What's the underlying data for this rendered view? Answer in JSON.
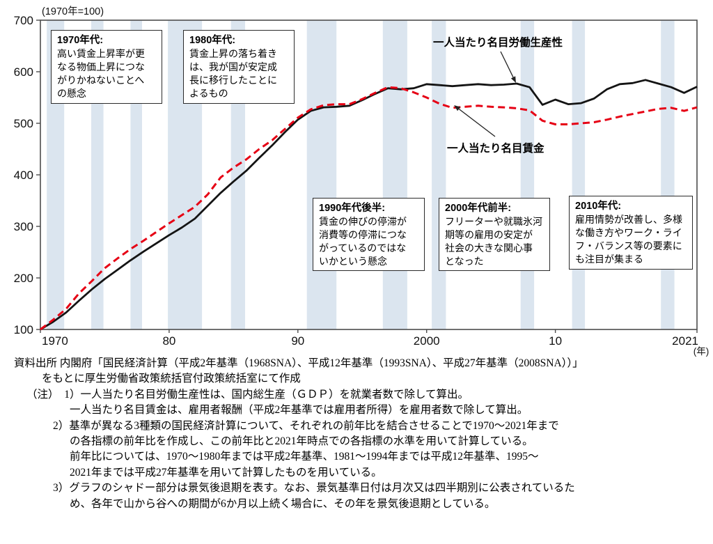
{
  "chart": {
    "y_axis_title": "(1970年=100)",
    "x_axis_unit_label": "(年)",
    "y_ticks": [
      700,
      600,
      500,
      400,
      300,
      200,
      100
    ],
    "x_ticks": [
      {
        "label": "1970",
        "year": 1970,
        "align": "start"
      },
      {
        "label": "80",
        "year": 1980,
        "align": "middle"
      },
      {
        "label": "90",
        "year": 1990,
        "align": "middle"
      },
      {
        "label": "2000",
        "year": 2000,
        "align": "middle"
      },
      {
        "label": "10",
        "year": 2010,
        "align": "middle"
      },
      {
        "label": "2021",
        "year": 2021,
        "align": "end"
      }
    ],
    "colors": {
      "productivity_line": "#141414",
      "wage_line": "#e60014",
      "recession_band": "#dbe5ef",
      "frame": "#4d4d4d",
      "text": "#111111"
    }
  },
  "chart_data": {
    "type": "line",
    "title": "",
    "xlabel": "(年)",
    "ylabel": "(1970年=100)",
    "xlim": [
      1970,
      2021
    ],
    "ylim": [
      100,
      700
    ],
    "grid": false,
    "x": [
      1970,
      1971,
      1972,
      1973,
      1974,
      1975,
      1976,
      1977,
      1978,
      1979,
      1980,
      1981,
      1982,
      1983,
      1984,
      1985,
      1986,
      1987,
      1988,
      1989,
      1990,
      1991,
      1992,
      1993,
      1994,
      1995,
      1996,
      1997,
      1998,
      1999,
      2000,
      2001,
      2002,
      2003,
      2004,
      2005,
      2006,
      2007,
      2008,
      2009,
      2010,
      2011,
      2012,
      2013,
      2014,
      2015,
      2016,
      2017,
      2018,
      2019,
      2020,
      2021
    ],
    "series": [
      {
        "id": "productivity",
        "name": "一人当たり名目労働生産性",
        "style": "solid",
        "color": "#141414",
        "values": [
          100,
          115,
          133,
          156,
          178,
          198,
          216,
          234,
          251,
          267,
          283,
          298,
          315,
          340,
          365,
          387,
          408,
          433,
          457,
          483,
          507,
          524,
          531,
          532,
          534,
          545,
          557,
          568,
          566,
          568,
          576,
          574,
          572,
          574,
          576,
          574,
          575,
          577,
          570,
          536,
          546,
          537,
          539,
          548,
          566,
          576,
          578,
          584,
          577,
          570,
          559,
          571
        ]
      },
      {
        "id": "wage",
        "name": "一人当たり名目賃金",
        "style": "dashed",
        "color": "#e60014",
        "values": [
          100,
          119,
          140,
          170,
          194,
          219,
          238,
          256,
          272,
          289,
          306,
          322,
          338,
          362,
          395,
          414,
          430,
          450,
          467,
          489,
          511,
          527,
          535,
          537,
          537,
          547,
          559,
          570,
          568,
          560,
          550,
          538,
          530,
          532,
          534,
          532,
          531,
          529,
          525,
          505,
          498,
          498,
          500,
          502,
          507,
          513,
          518,
          523,
          528,
          530,
          524,
          531
        ]
      }
    ],
    "recession_bands_years": [
      [
        1970.5,
        1971.85
      ],
      [
        1973.95,
        1974.9
      ],
      [
        1977.0,
        1977.9
      ],
      [
        1979.9,
        1982.55
      ],
      [
        1984.8,
        1985.9
      ],
      [
        1990.7,
        1993.0
      ],
      [
        1996.6,
        1998.5
      ],
      [
        2000.4,
        2001.5
      ],
      [
        2007.3,
        2008.35
      ],
      [
        2011.3,
        2012.3
      ],
      [
        2018.2,
        2019.25
      ]
    ],
    "legend_position": "annotated-arrows"
  },
  "legend": {
    "productivity": "一人当たり名目労働生産性",
    "wage": "一人当たり名目賃金"
  },
  "annotations": [
    {
      "title": "1970年代:",
      "lines": [
        "高い賃金上昇率が更",
        "なる物価上昇につな",
        "がりかねないことへ",
        "の懸念"
      ]
    },
    {
      "title": "1980年代:",
      "lines": [
        "賃金上昇の落ち着き",
        "は、我が国が安定成",
        "長に移行したことに",
        "よるもの"
      ]
    },
    {
      "title": "1990年代後半:",
      "lines": [
        "賃金の伸びの停滞が",
        "消費等の停滞につな",
        "がっているのではな",
        "いかという懸念"
      ]
    },
    {
      "title": "2000年代前半:",
      "lines": [
        "フリーターや就職氷河",
        "期等の雇用の安定が",
        "社会の大きな関心事",
        "となった"
      ]
    },
    {
      "title": "2010年代:",
      "lines": [
        "雇用情勢が改善し、多様",
        "な働き方やワーク・ライ",
        "フ・バランス等の要素に",
        "も注目が集まる"
      ]
    }
  ],
  "footer": {
    "lines": [
      "資料出所 内閣府「国民経済計算（平成2年基準（1968SNA）、平成12年基準（1993SNA）、平成27年基準（2008SNA））」",
      "をもとに厚生労働省政策統括官付政策統括室にて作成",
      "（注）　1）一人当たり名目労働生産性は、国内総生産（ＧＤＰ）を就業者数で除して算出。",
      "一人当たり名目賃金は、雇用者報酬（平成2年基準では雇用者所得）を雇用者数で除して算出。",
      "2）基準が異なる3種類の国民経済計算について、それぞれの前年比を結合させることで1970～2021年まで",
      "の各指標の前年比を作成し、この前年比と2021年時点での各指標の水準を用いて計算している。",
      "前年比については、1970～1980年までは平成2年基準、1981～1994年までは平成12年基準、1995～",
      "2021年までは平成27年基準を用いて計算したものを用いている。",
      "3）グラフのシャドー部分は景気後退期を表す。なお、景気基準日付は月次又は四半期別に公表されているた",
      "め、各年で山から谷への期間が6か月以上続く場合に、その年を景気後退期としている。"
    ]
  }
}
